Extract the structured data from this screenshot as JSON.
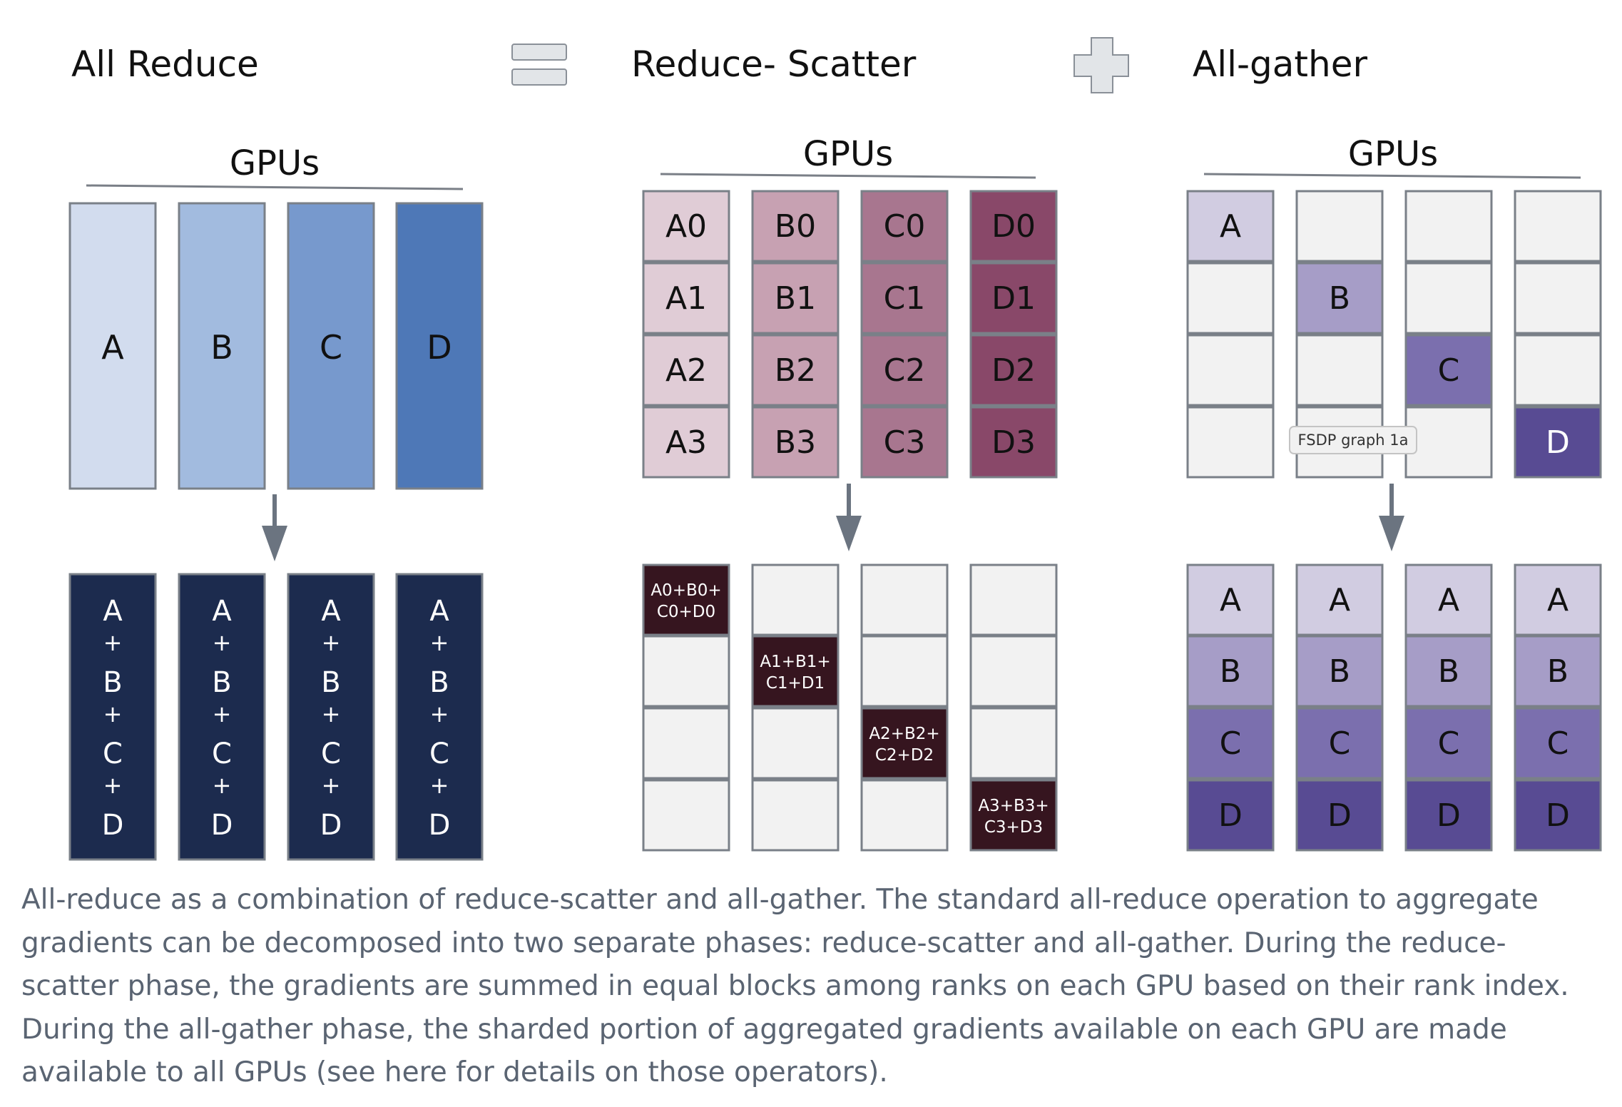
{
  "header": {
    "all_reduce": "All Reduce",
    "equals_icon": "equals-icon",
    "reduce_scatter": "Reduce- Scatter",
    "plus_icon": "plus-icon",
    "all_gather": "All-gather"
  },
  "all_reduce": {
    "gpus_label": "GPUs",
    "before": [
      {
        "label": "A",
        "color": "#d2dcee"
      },
      {
        "label": "B",
        "color": "#a2bbdf"
      },
      {
        "label": "C",
        "color": "#7799cd"
      },
      {
        "label": "D",
        "color": "#4e78b7"
      }
    ],
    "after_color": "#1c2b4e",
    "after": [
      [
        "A",
        "+",
        "B",
        "+",
        "C",
        "+",
        "D"
      ],
      [
        "A",
        "+",
        "B",
        "+",
        "C",
        "+",
        "D"
      ],
      [
        "A",
        "+",
        "B",
        "+",
        "C",
        "+",
        "D"
      ],
      [
        "A",
        "+",
        "B",
        "+",
        "C",
        "+",
        "D"
      ]
    ]
  },
  "reduce_scatter": {
    "gpus_label": "GPUs",
    "column_colors": [
      "#e0ccd6",
      "#c7a1b2",
      "#a8768f",
      "#894869"
    ],
    "before": [
      [
        "A0",
        "A1",
        "A2",
        "A3"
      ],
      [
        "B0",
        "B1",
        "B2",
        "B3"
      ],
      [
        "C0",
        "C1",
        "C2",
        "C3"
      ],
      [
        "D0",
        "D1",
        "D2",
        "D3"
      ]
    ],
    "result_color": "#36151f",
    "empty_color": "#f2f2f2",
    "after": [
      {
        "row": 0,
        "line1": "A0+B0+",
        "line2": "C0+D0"
      },
      {
        "row": 1,
        "line1": "A1+B1+",
        "line2": "C1+D1"
      },
      {
        "row": 2,
        "line1": "A2+B2+",
        "line2": "C2+D2"
      },
      {
        "row": 3,
        "line1": "A3+B3+",
        "line2": "C3+D3"
      }
    ]
  },
  "all_gather": {
    "gpus_label": "GPUs",
    "row_colors": [
      "#d1cce1",
      "#a69dc7",
      "#7b6fae",
      "#584b93"
    ],
    "before": [
      {
        "row": 0,
        "label": "A"
      },
      {
        "row": 1,
        "label": "B"
      },
      {
        "row": 2,
        "label": "C"
      },
      {
        "row": 3,
        "label": "D"
      }
    ],
    "after": [
      [
        "A",
        "B",
        "C",
        "D"
      ],
      [
        "A",
        "B",
        "C",
        "D"
      ],
      [
        "A",
        "B",
        "C",
        "D"
      ],
      [
        "A",
        "B",
        "C",
        "D"
      ]
    ],
    "tooltip": "FSDP graph 1a"
  },
  "caption": "All-reduce as a combination of reduce-scatter and all-gather. The standard all-reduce operation to aggregate gradients can be decomposed into two separate phases: reduce-scatter and all-gather. During the reduce-scatter phase, the gradients are summed in equal blocks among ranks on each GPU based on their rank index. During the all-gather phase, the sharded portion of aggregated gradients available on each GPU are made available to all GPUs (see here for details on those operators)."
}
